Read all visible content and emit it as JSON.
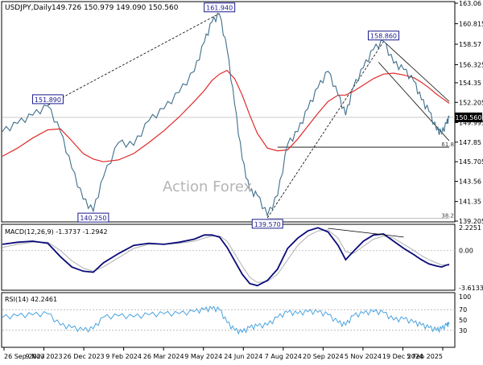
{
  "header": {
    "symbol": "USDJPY,Daily",
    "ohlc": "149.726 150.979 149.090 150.560"
  },
  "watermark": "Action Forex",
  "colors": {
    "price": "#3f6f8c",
    "ma": "#e02a2a",
    "trend": "#000000",
    "level": "#000000",
    "label_box": "#1a1a8c",
    "macd_line": "#0a0a7a",
    "macd_signal": "#b0b0b0",
    "rsi": "#4aa3df",
    "grid": "#c8c8c8",
    "current_price_box": "#000000"
  },
  "chart_data": [
    {
      "type": "line",
      "pane": "price",
      "title": "USDJPY,Daily",
      "ylim": [
        139.205,
        163.06
      ],
      "yticks": [
        163.06,
        160.815,
        158.57,
        156.325,
        154.35,
        152.205,
        149.995,
        147.85,
        145.705,
        143.56,
        141.35,
        139.205
      ],
      "ytick_labels": [
        "163.06",
        "160.815",
        "158.57",
        "156.325",
        "154.35",
        "152.205",
        "149.995",
        "147.85",
        "145.705",
        "143.56",
        "141.35",
        "139.205"
      ],
      "xtick_labels": [
        "26 Sep 2023",
        "9 Nov 2023",
        "26 Dec 2023",
        "9 Feb 2024",
        "26 Mar 2024",
        "9 May 2024",
        "24 Jun 2024",
        "7 Aug 2024",
        "20 Sep 2024",
        "5 Nov 2024",
        "19 Dec 2024",
        "5 Feb 2025"
      ],
      "x_range": [
        0,
        354
      ],
      "series": [
        {
          "role": "price",
          "x": [
            0,
            12,
            24,
            36,
            46,
            55,
            64,
            72,
            80,
            92,
            104,
            116,
            128,
            140,
            152,
            160,
            166,
            172,
            178,
            184,
            190,
            196,
            202,
            210,
            218,
            226,
            234,
            242,
            250,
            258,
            266,
            272,
            278,
            286,
            294,
            302,
            310,
            318,
            326,
            332,
            338,
            344,
            348,
            352,
            354
          ],
          "y": [
            149.0,
            149.9,
            150.8,
            151.8,
            149.0,
            145.0,
            141.6,
            140.3,
            144.0,
            147.8,
            147.5,
            150.2,
            151.5,
            153.3,
            155.6,
            158.8,
            161.0,
            161.8,
            158.0,
            152.0,
            146.0,
            142.5,
            142.0,
            139.8,
            142.0,
            147.6,
            149.0,
            151.5,
            153.8,
            155.6,
            153.0,
            150.8,
            153.8,
            156.0,
            158.0,
            158.9,
            156.5,
            155.8,
            154.5,
            152.5,
            151.2,
            149.2,
            148.8,
            149.9,
            150.56
          ]
        },
        {
          "role": "moving-average",
          "x": [
            0,
            12,
            24,
            36,
            46,
            55,
            64,
            72,
            80,
            92,
            104,
            116,
            128,
            140,
            152,
            160,
            166,
            172,
            178,
            184,
            190,
            196,
            202,
            210,
            218,
            226,
            234,
            242,
            250,
            258,
            266,
            272,
            278,
            286,
            294,
            302,
            310,
            318,
            326,
            332,
            338,
            344,
            348,
            352,
            354
          ],
          "y": [
            146.3,
            147.2,
            148.3,
            149.2,
            149.3,
            148.0,
            146.6,
            146.0,
            145.7,
            145.9,
            146.6,
            147.8,
            149.1,
            150.6,
            152.3,
            153.5,
            154.6,
            155.3,
            155.7,
            154.8,
            153.0,
            150.8,
            148.8,
            147.2,
            146.9,
            147.0,
            148.2,
            149.6,
            151.0,
            152.3,
            153.0,
            153.0,
            153.4,
            154.1,
            154.8,
            155.3,
            155.4,
            155.2,
            154.9,
            154.4,
            153.8,
            153.1,
            152.7,
            152.3,
            152.1
          ]
        }
      ],
      "current_price": 150.56,
      "level_61_8": 147.3,
      "level_38_2": 139.5,
      "annotations": [
        {
          "label": "161.940",
          "x": 172,
          "y": 161.94
        },
        {
          "label": "151.890",
          "x": 36,
          "y": 151.89
        },
        {
          "label": "140.250",
          "x": 72,
          "y": 140.25
        },
        {
          "label": "158.860",
          "x": 302,
          "y": 158.86
        },
        {
          "label": "139.570",
          "x": 210,
          "y": 139.57
        }
      ],
      "level_labels": {
        "fib_61_8": "61.8",
        "fib_38_2": "38.2"
      },
      "current_price_label": "150.560"
    },
    {
      "type": "line",
      "pane": "macd",
      "title": "MACD(12,26,9) -1.3737 -1.2942",
      "ylim": [
        -3.6133,
        2.2251
      ],
      "ytick_labels": [
        "2.2251",
        "0.00",
        "-3.6133"
      ],
      "ytick_values": [
        2.2251,
        0.0,
        -3.6133
      ],
      "series": [
        {
          "name": "MACD",
          "x": [
            0,
            12,
            24,
            36,
            46,
            55,
            64,
            72,
            80,
            92,
            104,
            116,
            128,
            140,
            152,
            160,
            166,
            172,
            178,
            184,
            190,
            196,
            202,
            210,
            218,
            226,
            234,
            242,
            250,
            258,
            266,
            272,
            278,
            286,
            294,
            302,
            310,
            318,
            326,
            332,
            338,
            344,
            348,
            352,
            354
          ],
          "y": [
            0.6,
            0.8,
            0.9,
            0.7,
            -0.6,
            -1.6,
            -2.0,
            -2.1,
            -1.2,
            -0.3,
            0.5,
            0.7,
            0.6,
            0.8,
            1.1,
            1.5,
            1.5,
            1.3,
            0.3,
            -1.0,
            -2.3,
            -3.2,
            -3.4,
            -2.9,
            -1.8,
            0.2,
            1.2,
            1.9,
            2.2,
            1.8,
            0.5,
            -0.9,
            -0.1,
            0.9,
            1.5,
            1.6,
            0.9,
            0.2,
            -0.4,
            -0.9,
            -1.3,
            -1.5,
            -1.6,
            -1.4,
            -1.37
          ]
        },
        {
          "name": "Signal",
          "x": [
            0,
            12,
            24,
            36,
            46,
            55,
            64,
            72,
            80,
            92,
            104,
            116,
            128,
            140,
            152,
            160,
            166,
            172,
            178,
            184,
            190,
            196,
            202,
            210,
            218,
            226,
            234,
            242,
            250,
            258,
            266,
            272,
            278,
            286,
            294,
            302,
            310,
            318,
            326,
            332,
            338,
            344,
            348,
            352,
            354
          ],
          "y": [
            0.3,
            0.6,
            0.8,
            0.8,
            0.0,
            -1.0,
            -1.7,
            -2.0,
            -1.6,
            -0.7,
            0.2,
            0.6,
            0.6,
            0.7,
            0.9,
            1.2,
            1.4,
            1.4,
            0.9,
            -0.3,
            -1.5,
            -2.6,
            -3.1,
            -3.0,
            -2.3,
            -0.9,
            0.5,
            1.4,
            1.9,
            2.0,
            1.2,
            -0.1,
            -0.3,
            0.4,
            1.1,
            1.4,
            1.2,
            0.6,
            0.0,
            -0.5,
            -0.9,
            -1.2,
            -1.4,
            -1.4,
            -1.29
          ]
        }
      ]
    },
    {
      "type": "line",
      "pane": "rsi",
      "title": "RSI(14) 42.2461",
      "ylim": [
        0,
        100
      ],
      "ytick_values": [
        70,
        50,
        30
      ],
      "ytick_labels": [
        "70",
        "50",
        "30"
      ],
      "top_label": "100",
      "series": [
        {
          "name": "RSI",
          "x": [
            0,
            12,
            24,
            36,
            46,
            55,
            64,
            72,
            80,
            92,
            104,
            116,
            128,
            140,
            152,
            160,
            166,
            172,
            178,
            184,
            190,
            196,
            202,
            210,
            218,
            226,
            234,
            242,
            250,
            258,
            266,
            272,
            278,
            286,
            294,
            302,
            310,
            318,
            326,
            332,
            338,
            344,
            348,
            352,
            354
          ],
          "y": [
            55,
            58,
            60,
            62,
            40,
            35,
            30,
            33,
            55,
            58,
            56,
            60,
            62,
            62,
            66,
            70,
            72,
            70,
            45,
            30,
            26,
            35,
            38,
            40,
            55,
            65,
            62,
            66,
            65,
            60,
            45,
            40,
            58,
            63,
            66,
            64,
            50,
            52,
            45,
            40,
            35,
            30,
            33,
            40,
            42
          ]
        }
      ]
    }
  ]
}
